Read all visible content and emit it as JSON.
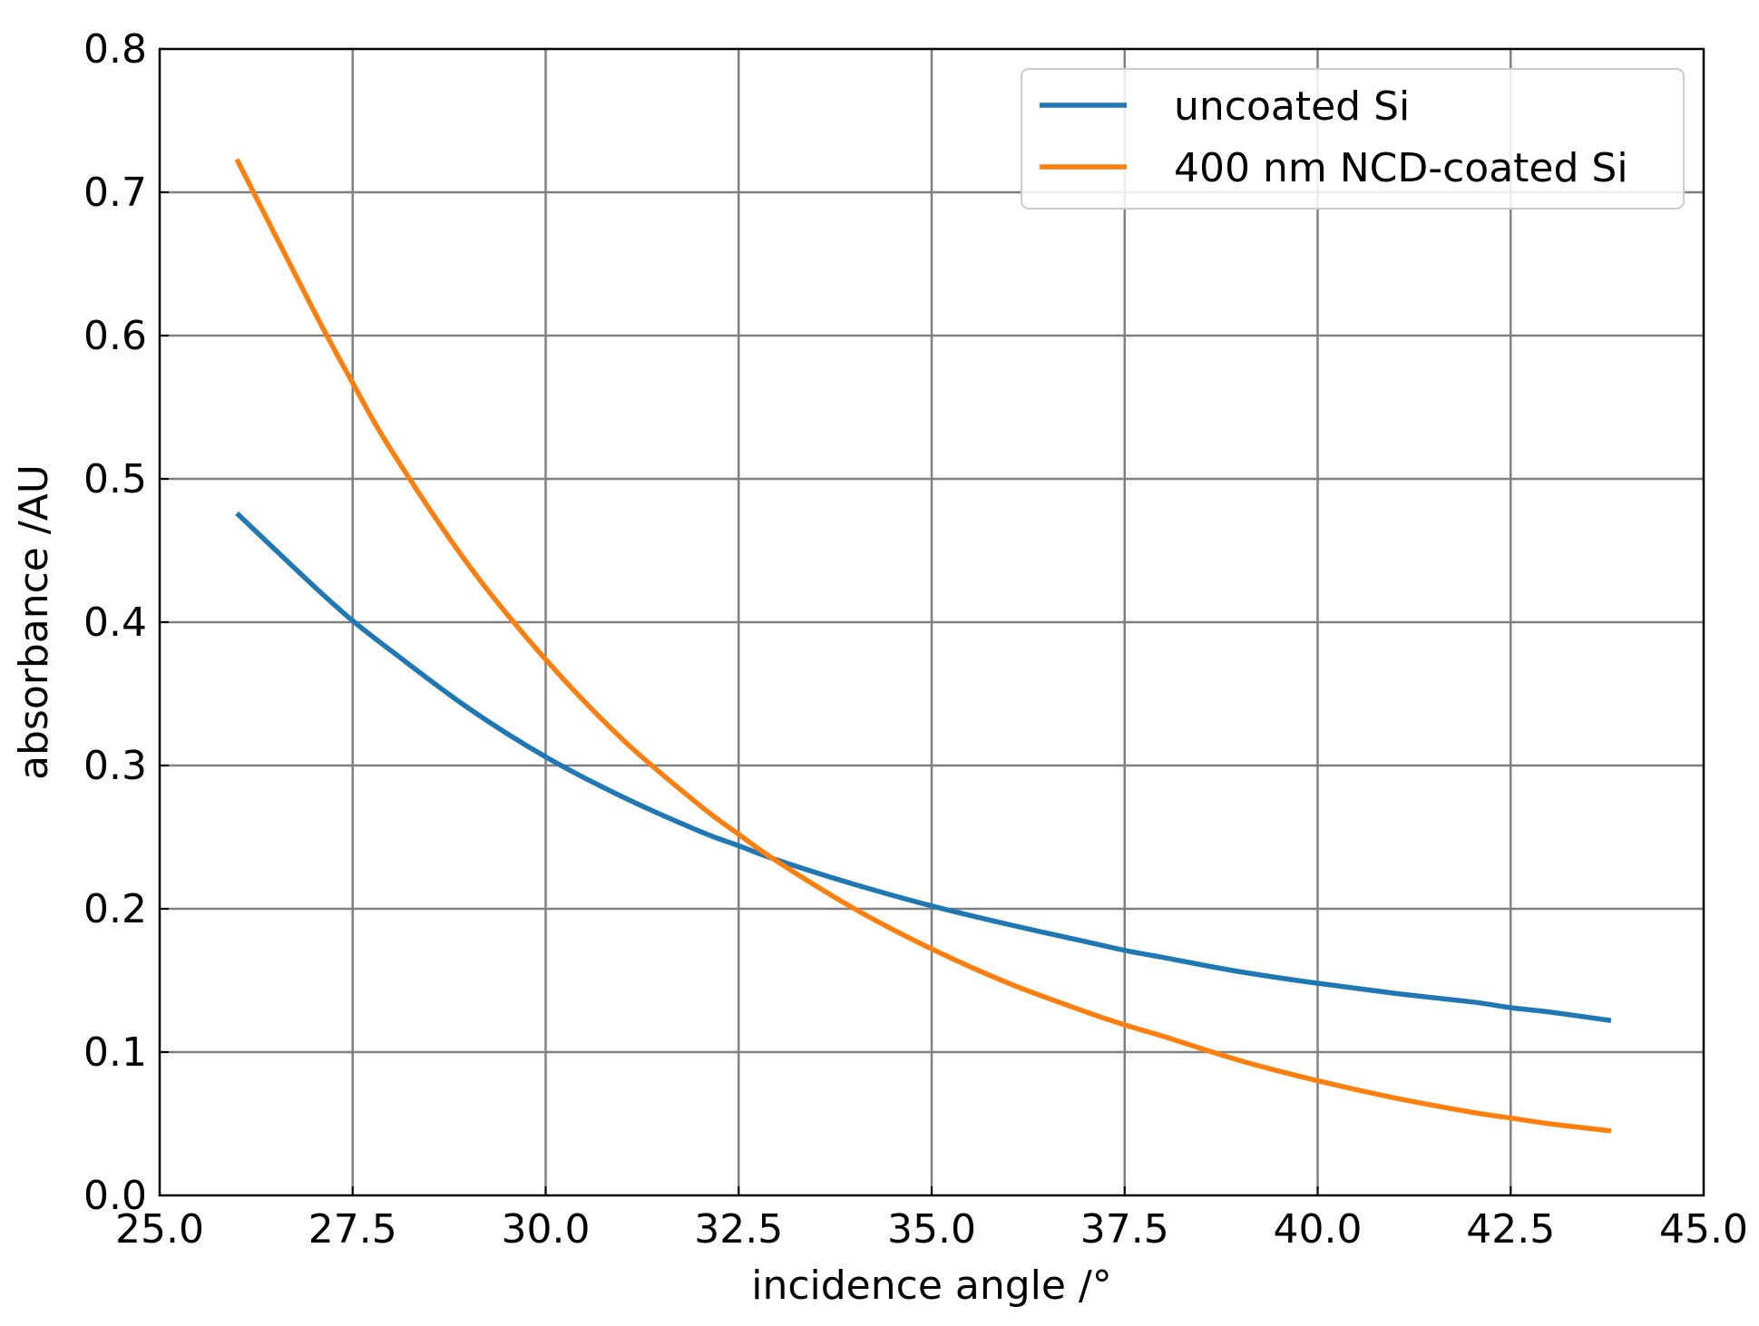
{
  "chart_data": {
    "type": "line",
    "title": "",
    "xlabel": "incidence angle /°",
    "ylabel": "absorbance  /AU",
    "xlim": [
      25.0,
      45.0
    ],
    "ylim": [
      0.0,
      0.8
    ],
    "x_ticks": [
      "25.0",
      "27.5",
      "30.0",
      "32.5",
      "35.0",
      "37.5",
      "40.0",
      "42.5",
      "45.0"
    ],
    "y_ticks": [
      "0.0",
      "0.1",
      "0.2",
      "0.3",
      "0.4",
      "0.5",
      "0.6",
      "0.7",
      "0.8"
    ],
    "grid": true,
    "legend_position": "top-right",
    "series": [
      {
        "name": "uncoated Si",
        "color": "#1f77b4",
        "x": [
          26.0,
          27.0,
          27.5,
          28.0,
          29.0,
          30.0,
          31.0,
          32.0,
          32.5,
          33.0,
          34.0,
          35.0,
          36.0,
          37.0,
          37.5,
          38.0,
          39.0,
          40.0,
          41.0,
          42.0,
          42.5,
          43.0,
          43.8
        ],
        "y": [
          0.476,
          0.425,
          0.401,
          0.38,
          0.34,
          0.306,
          0.278,
          0.254,
          0.244,
          0.234,
          0.217,
          0.202,
          0.189,
          0.177,
          0.171,
          0.166,
          0.156,
          0.148,
          0.141,
          0.135,
          0.131,
          0.128,
          0.122
        ]
      },
      {
        "name": "400 nm NCD-coated Si",
        "color": "#ff7f0e",
        "x": [
          26.0,
          27.0,
          27.5,
          28.0,
          29.0,
          30.0,
          31.0,
          32.0,
          32.5,
          33.0,
          34.0,
          35.0,
          36.0,
          37.0,
          37.5,
          38.0,
          39.0,
          40.0,
          41.0,
          42.0,
          42.5,
          43.0,
          43.8
        ],
        "y": [
          0.723,
          0.617,
          0.567,
          0.52,
          0.44,
          0.374,
          0.318,
          0.272,
          0.252,
          0.233,
          0.2,
          0.172,
          0.148,
          0.128,
          0.119,
          0.111,
          0.094,
          0.08,
          0.068,
          0.058,
          0.054,
          0.05,
          0.045
        ]
      }
    ]
  }
}
